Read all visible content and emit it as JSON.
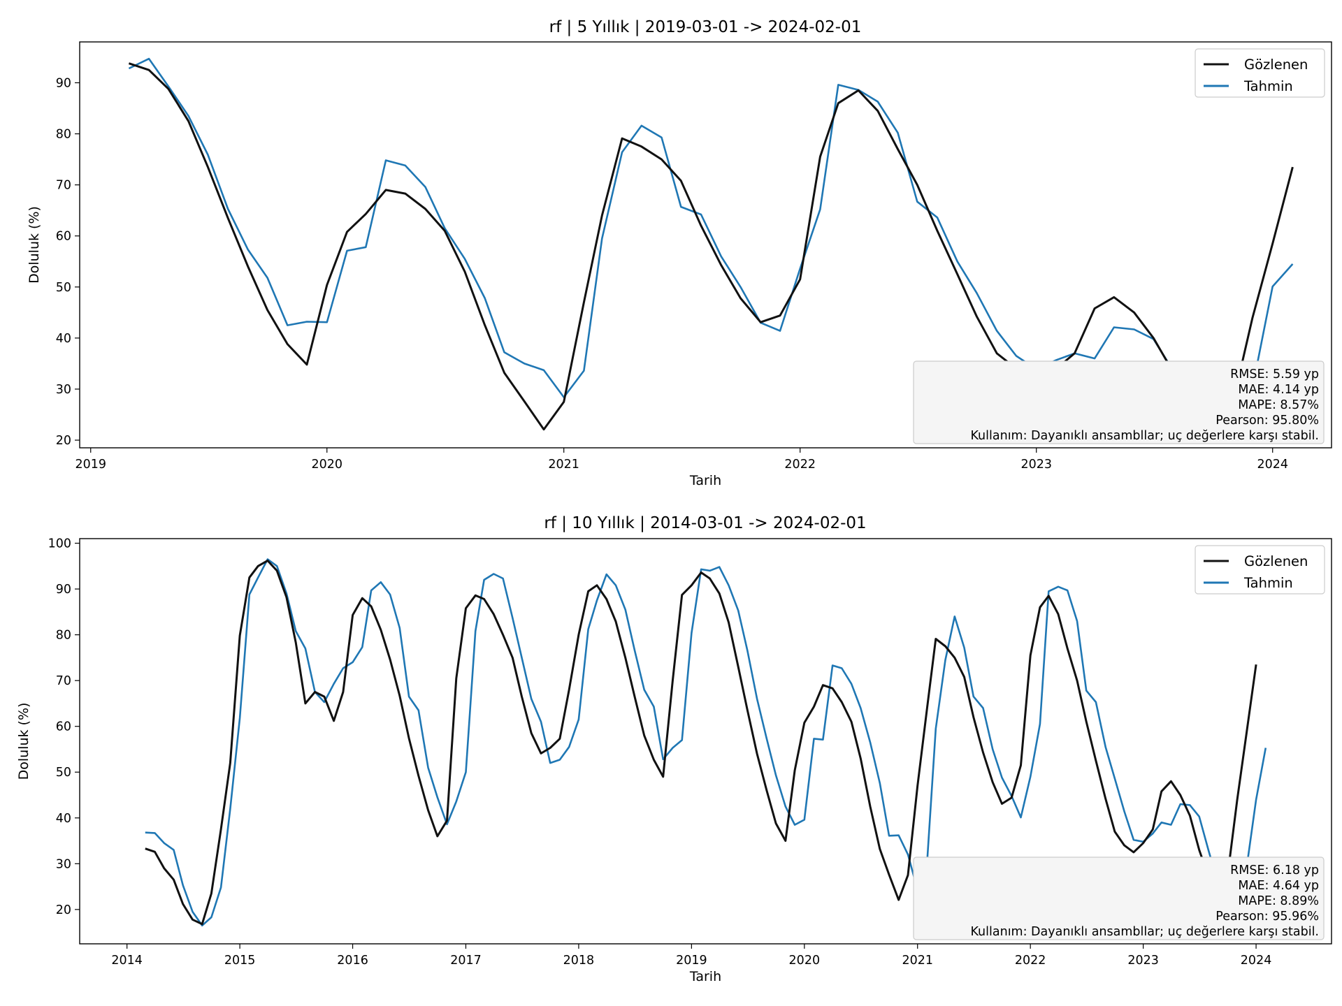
{
  "colors": {
    "observed": "#111111",
    "forecast": "#1f77b4",
    "box_fill": "#f5f5f5",
    "box_edge": "#cccccc"
  },
  "chart_data": [
    {
      "type": "line",
      "title": "rf | 5 Yıllık | 2019-03-01 -> 2024-02-01",
      "xlabel": "Tarih",
      "ylabel": "Doluluk (%)",
      "xlim": [
        "2018-12-15",
        "2024-04-01"
      ],
      "ylim": [
        18.5,
        98
      ],
      "xticks": [
        "2019",
        "2020",
        "2021",
        "2022",
        "2023",
        "2024"
      ],
      "yticks": [
        20,
        30,
        40,
        50,
        60,
        70,
        80,
        90
      ],
      "grid": false,
      "legend_position": "top-right",
      "start": "2019-03",
      "series": [
        {
          "name": "Gözlenen",
          "values": [
            93.8,
            92.5,
            88.8,
            82.5,
            73.5,
            63.5,
            54.0,
            45.5,
            38.8,
            34.8,
            50.4,
            60.8,
            64.3,
            69.0,
            68.3,
            65.3,
            61.0,
            53.0,
            42.5,
            33.2,
            27.6,
            22.1,
            27.5,
            47.0,
            64.0,
            79.1,
            77.5,
            75.0,
            70.8,
            62.0,
            54.3,
            47.8,
            43.1,
            44.4,
            51.5,
            75.5,
            86.0,
            88.5,
            84.5,
            77.0,
            70.0,
            61.0,
            52.5,
            44.2,
            37.0,
            34.0,
            33.0,
            34.0,
            37.0,
            45.8,
            48.0,
            45.0,
            40.0,
            33.2,
            27.0,
            22.0,
            27.5,
            44.0,
            58.5,
            73.5
          ]
        },
        {
          "name": "Tahmin",
          "values": [
            92.8,
            94.7,
            89.3,
            83.5,
            75.9,
            65.3,
            57.3,
            51.8,
            42.5,
            43.2,
            43.1,
            57.1,
            57.8,
            74.8,
            73.8,
            69.6,
            61.5,
            55.5,
            47.8,
            37.2,
            35.0,
            33.7,
            28.4,
            33.6,
            59.5,
            76.4,
            81.6,
            79.3,
            65.7,
            64.2,
            56.0,
            50.0,
            43.0,
            41.4,
            53.6,
            65.2,
            89.6,
            88.6,
            86.3,
            80.2,
            66.7,
            63.6,
            55.0,
            48.8,
            41.4,
            36.5,
            33.9,
            35.7,
            37.0,
            36.0,
            42.1,
            41.7,
            39.8,
            33.5,
            28.0,
            24.5,
            26.0,
            30.3,
            50.1,
            54.5
          ]
        }
      ],
      "metrics": {
        "rmse": "RMSE: 5.59 yp",
        "mae": "MAE: 4.14 yp",
        "mape": "MAPE: 8.57%",
        "pearson": "Pearson: 95.80%",
        "usage": "Kullanım: Dayanıklı ansambllar; uç değerlere karşı stabil."
      }
    },
    {
      "type": "line",
      "title": "rf | 10 Yıllık | 2014-03-01 -> 2024-02-01",
      "xlabel": "Tarih",
      "ylabel": "Doluluk (%)",
      "xlim": [
        "2013-08-01",
        "2024-09-01"
      ],
      "ylim": [
        12.5,
        101
      ],
      "xticks": [
        "2014",
        "2015",
        "2016",
        "2017",
        "2018",
        "2019",
        "2020",
        "2021",
        "2022",
        "2023",
        "2024"
      ],
      "yticks": [
        20,
        30,
        40,
        50,
        60,
        70,
        80,
        90,
        100
      ],
      "grid": false,
      "legend_position": "top-right",
      "start": "2014-03",
      "series": [
        {
          "name": "Gözlenen",
          "values": [
            33.3,
            32.6,
            29.0,
            26.5,
            21.2,
            17.8,
            16.8,
            23.5,
            37.5,
            52.0,
            79.8,
            92.5,
            95.0,
            96.2,
            94.0,
            88.2,
            78.3,
            65.0,
            67.5,
            66.5,
            61.2,
            67.5,
            84.3,
            88.0,
            86.2,
            81.1,
            74.6,
            66.7,
            57.4,
            49.2,
            41.7,
            36.0,
            39.4,
            70.5,
            85.8,
            88.6,
            87.8,
            84.5,
            80.0,
            75.0,
            66.5,
            58.5,
            54.1,
            55.3,
            57.3,
            68.0,
            80.0,
            89.5,
            90.8,
            87.8,
            82.9,
            75.0,
            66.5,
            58.0,
            52.7,
            49.0,
            70.0,
            88.7,
            90.8,
            93.6,
            92.3,
            89.0,
            82.7,
            73.0,
            63.5,
            54.0,
            46.0,
            38.8,
            35.0,
            50.4,
            60.8,
            64.3,
            69.0,
            68.3,
            65.3,
            61.0,
            53.0,
            42.5,
            33.2,
            27.6,
            22.1,
            27.5,
            47.0,
            64.0,
            79.1,
            77.5,
            75.0,
            70.8,
            62.0,
            54.3,
            47.8,
            43.1,
            44.4,
            51.5,
            75.5,
            86.0,
            88.5,
            84.5,
            77.0,
            70.0,
            61.0,
            52.5,
            44.2,
            37.0,
            34.0,
            32.5,
            34.5,
            37.5,
            45.8,
            48.0,
            45.0,
            40.5,
            33.0,
            27.0,
            22.0,
            27.5,
            44.0,
            58.5,
            73.5
          ]
        },
        {
          "name": "Tahmin",
          "values": [
            36.8,
            36.7,
            34.5,
            33.0,
            25.3,
            19.5,
            16.5,
            18.3,
            24.8,
            42.0,
            61.8,
            88.8,
            92.5,
            96.5,
            95.0,
            89.0,
            80.8,
            77.0,
            67.5,
            65.3,
            69.3,
            72.7,
            74.0,
            77.3,
            89.7,
            91.5,
            88.8,
            81.5,
            66.5,
            63.5,
            51.0,
            44.5,
            38.6,
            43.6,
            50.0,
            80.8,
            92.0,
            93.3,
            92.3,
            83.7,
            75.0,
            66.0,
            61.0,
            52.0,
            52.7,
            55.5,
            61.5,
            81.2,
            87.5,
            93.2,
            90.8,
            85.5,
            76.6,
            68.0,
            64.3,
            52.8,
            55.3,
            57.0,
            80.4,
            94.3,
            94.0,
            94.8,
            90.8,
            85.3,
            76.5,
            66.0,
            57.3,
            49.3,
            42.5,
            38.5,
            39.6,
            57.3,
            57.1,
            73.3,
            72.7,
            69.3,
            64.0,
            56.5,
            47.6,
            36.1,
            36.2,
            32.0,
            24.3,
            30.3,
            59.5,
            74.5,
            84.0,
            77.2,
            66.5,
            64.0,
            55.0,
            48.8,
            44.8,
            40.1,
            49.0,
            60.5,
            89.5,
            90.5,
            89.7,
            83.0,
            67.8,
            65.3,
            55.5,
            48.6,
            41.4,
            35.2,
            34.8,
            36.6,
            39.0,
            38.5,
            43.0,
            42.8,
            40.3,
            32.7,
            25.5,
            24.0,
            24.5,
            29.0,
            44.0,
            55.3
          ]
        }
      ],
      "metrics": {
        "rmse": "RMSE: 6.18 yp",
        "mae": "MAE: 4.64 yp",
        "mape": "MAPE: 8.89%",
        "pearson": "Pearson: 95.96%",
        "usage": "Kullanım: Dayanıklı ansambllar; uç değerlere karşı stabil."
      }
    }
  ]
}
